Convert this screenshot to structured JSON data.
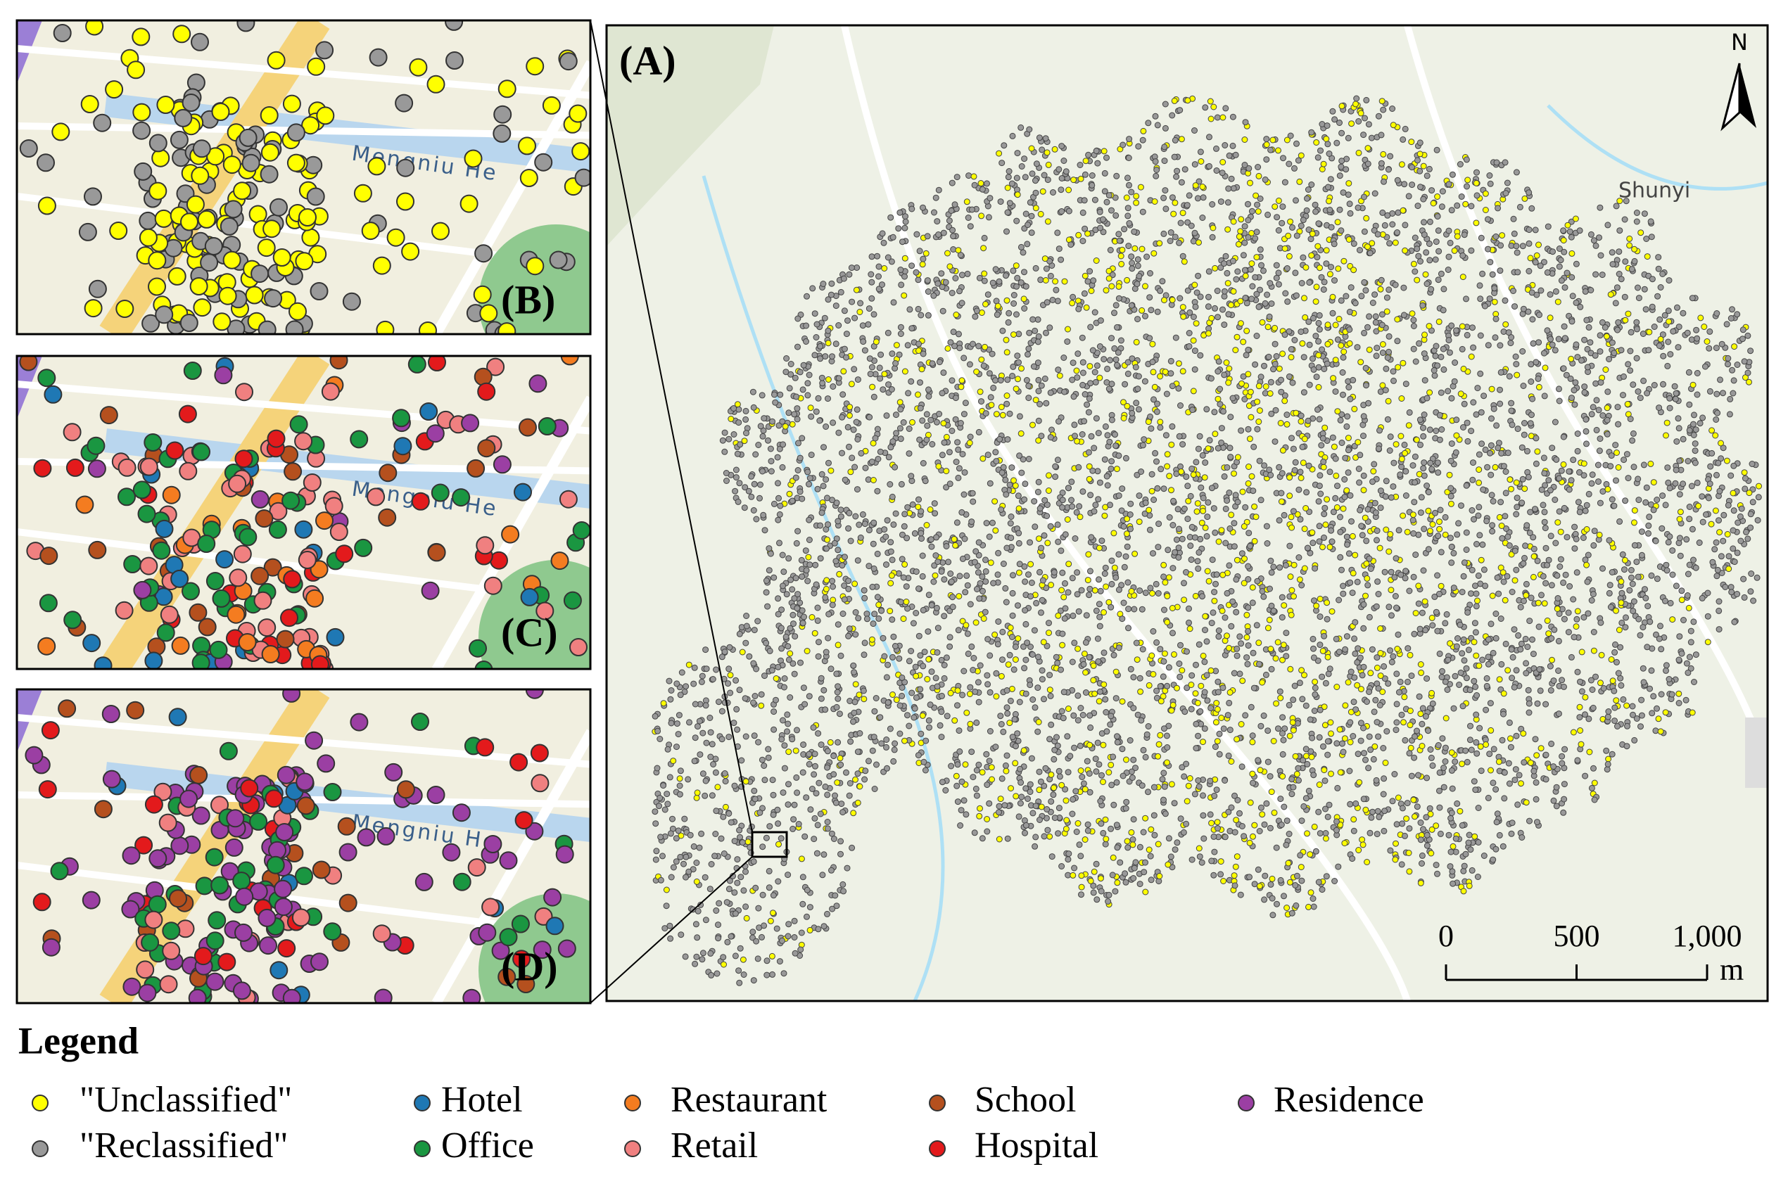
{
  "panels": {
    "a": "(A)",
    "b": "(B)",
    "c": "(C)",
    "d": "(D)"
  },
  "map_labels": {
    "north": "N",
    "town": "Shunyi",
    "river_b": "Mengniu He",
    "river_c": "Mengniu He",
    "river_d": "Mengniu He"
  },
  "scale_bar": {
    "ticks": [
      0,
      500,
      {
        "value": 1000,
        "label": "1,000"
      }
    ],
    "unit": "m"
  },
  "legend": {
    "title": "Legend",
    "items": [
      {
        "name": "\"Unclassified\"",
        "color": "#ffff00"
      },
      {
        "name": "\"Reclassified\"",
        "color": "#999999"
      },
      {
        "name": "Hotel",
        "color": "#1f78b4"
      },
      {
        "name": "Office",
        "color": "#1a9641"
      },
      {
        "name": "Restaurant",
        "color": "#f47c20"
      },
      {
        "name": "Retail",
        "color": "#f08080"
      },
      {
        "name": "School",
        "color": "#b5501e"
      },
      {
        "name": "Hospital",
        "color": "#e31a1c"
      },
      {
        "name": "Residence",
        "color": "#9b3fa3"
      }
    ]
  }
}
